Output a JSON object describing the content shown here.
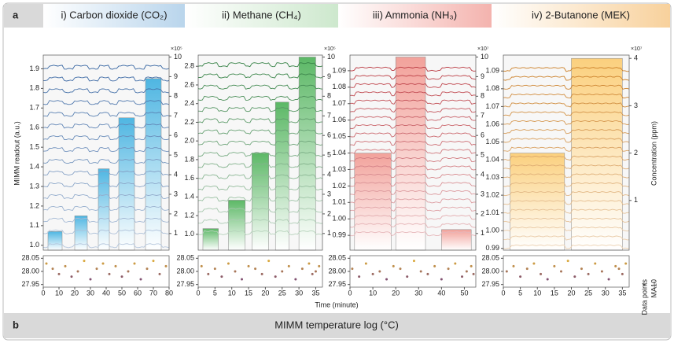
{
  "header": {
    "label": "a"
  },
  "footer": {
    "label": "b",
    "title": "MIMM temperature log (°C)"
  },
  "y_label": "MIMM readout (a.u.)",
  "y2_label": "Concentration (ppm)",
  "x_label": "Time (minute)",
  "legend": [
    "Data points",
    "MA10"
  ],
  "chart_data": [
    {
      "type": "bar",
      "title": "i) Carbon dioxide (CO₂)",
      "header_color": "#b9d5ec",
      "color": "#4fb6e2",
      "trace_color": "#2f5f9e",
      "xlim": [
        0,
        80
      ],
      "xticks": [
        0,
        10,
        20,
        30,
        40,
        50,
        60,
        70,
        80
      ],
      "ylim": [
        0.975,
        1.97
      ],
      "yticks": [
        {
          "value": 1,
          "label": "1.0"
        },
        1.1,
        1.2,
        1.3,
        1.4,
        1.5,
        1.6,
        1.7,
        1.8,
        1.9
      ],
      "y2lim": [
        0.15,
        10.1
      ],
      "y2ticks": [
        1,
        2,
        3,
        4,
        5,
        6,
        7,
        8,
        9,
        10
      ],
      "y2_multiplier": "×10⁵",
      "bars": {
        "start": [
          3,
          20,
          35,
          48,
          65
        ],
        "end": [
          12,
          28,
          42,
          58,
          75
        ],
        "values": [
          1.1,
          1.9,
          4.3,
          6.9,
          8.9
        ]
      },
      "trace_baselines": [
        0.99,
        1.06,
        1.12,
        1.18,
        1.24,
        1.3,
        1.36,
        1.42,
        1.48,
        1.54,
        1.6,
        1.66,
        1.72,
        1.78,
        1.84,
        1.9
      ],
      "temperature": {
        "ylim": [
          27.94,
          28.06
        ],
        "yticks": [
          27.95,
          {
            "value": 28,
            "label": "28.00"
          },
          28.05
        ],
        "x": [
          2,
          6,
          10,
          14,
          18,
          22,
          26,
          30,
          34,
          38,
          42,
          46,
          50,
          54,
          58,
          62,
          66,
          70,
          74,
          78
        ],
        "values": [
          28.03,
          28.01,
          27.99,
          28.02,
          27.98,
          28,
          28.04,
          27.97,
          28.01,
          28.03,
          27.99,
          28.02,
          27.98,
          28,
          28.03,
          27.97,
          28.01,
          28.04,
          27.99,
          28.02
        ]
      }
    },
    {
      "type": "bar",
      "title": "ii) Methane (CH₄)",
      "header_color": "#cde8cd",
      "color": "#5cb866",
      "trace_color": "#2e7d3e",
      "xlim": [
        0,
        37
      ],
      "xticks": [
        0,
        5,
        10,
        15,
        20,
        25,
        30,
        35
      ],
      "ylim": [
        0.83,
        2.92
      ],
      "yticks": [
        {
          "value": 1,
          "label": "1.0"
        },
        1.2,
        1.4,
        1.6,
        1.8,
        {
          "value": 2,
          "label": "2.0"
        },
        2.2,
        2.4,
        2.6,
        2.8
      ],
      "y2lim": [
        0.15,
        10.1
      ],
      "y2ticks": [
        1,
        2,
        3,
        4,
        5,
        6,
        7,
        8,
        9,
        10
      ],
      "y2_multiplier": "×10⁵",
      "bars": {
        "start": [
          1.4,
          9,
          16,
          23,
          30
        ],
        "end": [
          6,
          14,
          21,
          27,
          35
        ],
        "values": [
          1.25,
          2.7,
          5.1,
          7.7,
          10
        ]
      },
      "trace_baselines": [
        1,
        1.12,
        1.24,
        1.36,
        1.48,
        1.6,
        1.72,
        1.84,
        1.96,
        2.08,
        2.2,
        2.32,
        2.44,
        2.56,
        2.68,
        2.8
      ],
      "temperature": {
        "ylim": [
          27.94,
          28.06
        ],
        "yticks": [
          27.95,
          {
            "value": 28,
            "label": "28.00"
          },
          28.05
        ],
        "x": [
          1,
          3,
          5,
          7,
          9,
          11,
          13,
          15,
          17,
          19,
          21,
          23,
          25,
          27,
          29,
          31,
          33,
          34,
          35,
          36
        ],
        "values": [
          28.02,
          27.99,
          28.01,
          27.98,
          28.03,
          28,
          27.97,
          28.02,
          28.01,
          27.99,
          28.04,
          27.98,
          28,
          28.02,
          27.97,
          28.01,
          28.03,
          27.99,
          28,
          28.02
        ]
      }
    },
    {
      "type": "bar",
      "title": "iii) Ammonia (NH₃)",
      "header_color": "#f4b3ae",
      "color": "#f2a29b",
      "trace_color": "#b8323a",
      "xlim": [
        0,
        55
      ],
      "xticks": [
        0,
        10,
        20,
        30,
        40,
        50
      ],
      "ylim": [
        0.981,
        1.0995
      ],
      "yticks": [
        0.99,
        {
          "value": 1,
          "label": "1.00"
        },
        1.01,
        1.02,
        1.03,
        1.04,
        1.05,
        1.06,
        1.07,
        1.08,
        1.09
      ],
      "y2lim": [
        0.15,
        10.1
      ],
      "y2ticks": [
        1,
        2,
        3,
        4,
        5,
        6,
        7,
        8,
        9,
        10
      ],
      "y2_multiplier": "×10⁷",
      "bars": {
        "start": [
          2,
          20,
          40
        ],
        "end": [
          18,
          33,
          53
        ],
        "values": [
          5.1,
          10,
          1.2
        ]
      },
      "trace_baselines": [
        0.99,
        0.995,
        1,
        1.005,
        1.01,
        1.015,
        1.02,
        1.025,
        1.03,
        1.035,
        1.04,
        1.045,
        1.05,
        1.055,
        1.06,
        1.065,
        1.07,
        1.075,
        1.08,
        1.085,
        1.09
      ],
      "temperature": {
        "ylim": [
          27.94,
          28.06
        ],
        "yticks": [
          27.95,
          {
            "value": 28,
            "label": "28.00"
          },
          28.05
        ],
        "x": [
          1,
          4,
          7,
          10,
          13,
          16,
          19,
          22,
          25,
          28,
          31,
          34,
          37,
          40,
          43,
          46,
          49,
          51,
          53,
          54
        ],
        "values": [
          28.01,
          27.98,
          28.03,
          27.99,
          28,
          27.97,
          28.02,
          28.01,
          27.98,
          28.04,
          28,
          27.99,
          28.02,
          27.97,
          28.01,
          28.03,
          27.98,
          28,
          28.02,
          27.99
        ]
      }
    },
    {
      "type": "bar",
      "title": "iv) 2-Butanone (MEK)",
      "header_color": "#f8d19c",
      "color": "#fbd07e",
      "trace_color": "#c97a1e",
      "xlim": [
        0,
        37
      ],
      "xticks": [
        0,
        5,
        10,
        15,
        20,
        25,
        30,
        35
      ],
      "ylim": [
        0.989,
        1.099
      ],
      "yticks": [
        0.99,
        {
          "value": 1,
          "label": "1.00"
        },
        1.01,
        1.02,
        1.03,
        1.04,
        1.05,
        1.06,
        1.07,
        1.08,
        1.09
      ],
      "y2lim": [
        -0.05,
        4.07
      ],
      "y2ticks": [
        1,
        2,
        3,
        4
      ],
      "y2_multiplier": "×10⁷",
      "bars": {
        "start": [
          2,
          20
        ],
        "end": [
          18,
          35
        ],
        "values": [
          2,
          4
        ]
      },
      "trace_baselines": [
        0.99,
        0.995,
        1,
        1.005,
        1.01,
        1.015,
        1.02,
        1.025,
        1.03,
        1.035,
        1.04,
        1.045,
        1.05,
        1.055,
        1.06,
        1.065,
        1.07,
        1.075,
        1.08,
        1.085,
        1.09
      ],
      "temperature": {
        "ylim": [
          27.94,
          28.06
        ],
        "yticks": [
          27.95,
          {
            "value": 28,
            "label": "28.00"
          },
          28.05
        ],
        "x": [
          1,
          3,
          5,
          7,
          9,
          11,
          13,
          15,
          17,
          19,
          21,
          23,
          25,
          27,
          29,
          31,
          33,
          34,
          35,
          36
        ],
        "values": [
          28,
          28.02,
          27.98,
          28.01,
          28.03,
          27.99,
          27.97,
          28.02,
          28,
          28.04,
          27.98,
          28.01,
          27.99,
          28.03,
          28,
          27.97,
          28.02,
          28.01,
          27.99,
          28.03
        ]
      }
    }
  ]
}
